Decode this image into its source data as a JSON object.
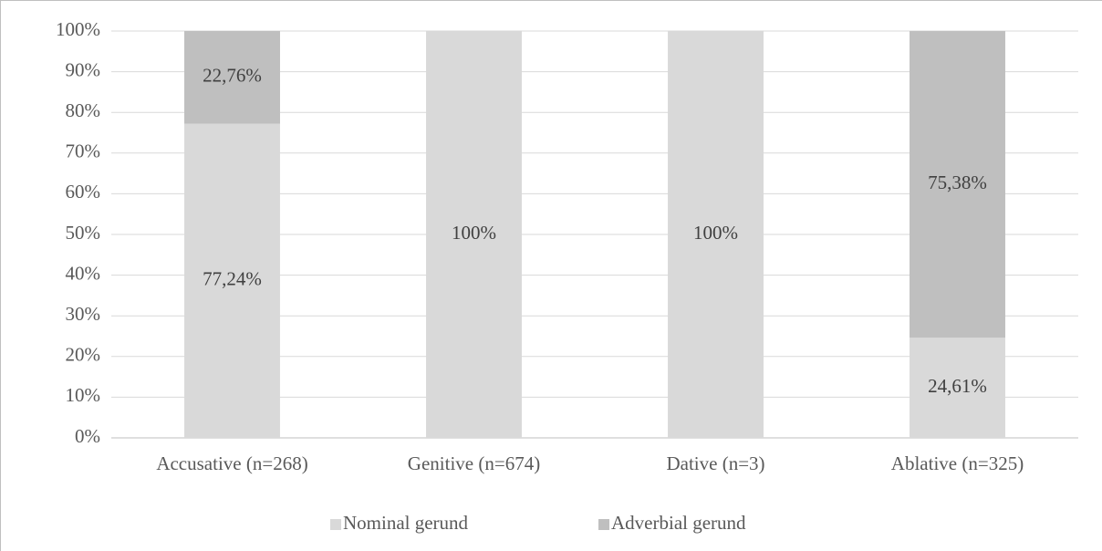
{
  "chart_data": {
    "type": "stacked_bar",
    "categories": [
      "Accusative (n=268)",
      "Genitive (n=674)",
      "Dative (n=3)",
      "Ablative (n=325)"
    ],
    "series": [
      {
        "name": "Nominal gerund",
        "color": "#d9d9d9",
        "values": [
          77.24,
          100,
          100,
          24.61
        ],
        "value_labels": [
          "77,24%",
          "100%",
          "100%",
          "24,61%"
        ]
      },
      {
        "name": "Adverbial gerund",
        "color": "#bfbfbf",
        "values": [
          22.76,
          0,
          0,
          75.38
        ],
        "value_labels": [
          "22,76%",
          null,
          null,
          "75,38%"
        ]
      }
    ],
    "ylim": [
      0,
      100
    ],
    "yticks": [
      {
        "value": 0,
        "label": "0%"
      },
      {
        "value": 10,
        "label": "10%"
      },
      {
        "value": 20,
        "label": "20%"
      },
      {
        "value": 30,
        "label": "30%"
      },
      {
        "value": 40,
        "label": "40%"
      },
      {
        "value": 50,
        "label": "50%"
      },
      {
        "value": 60,
        "label": "60%"
      },
      {
        "value": 70,
        "label": "70%"
      },
      {
        "value": 80,
        "label": "80%"
      },
      {
        "value": 90,
        "label": "90%"
      },
      {
        "value": 100,
        "label": "100%"
      }
    ],
    "grid": true,
    "legend": "bottom"
  }
}
